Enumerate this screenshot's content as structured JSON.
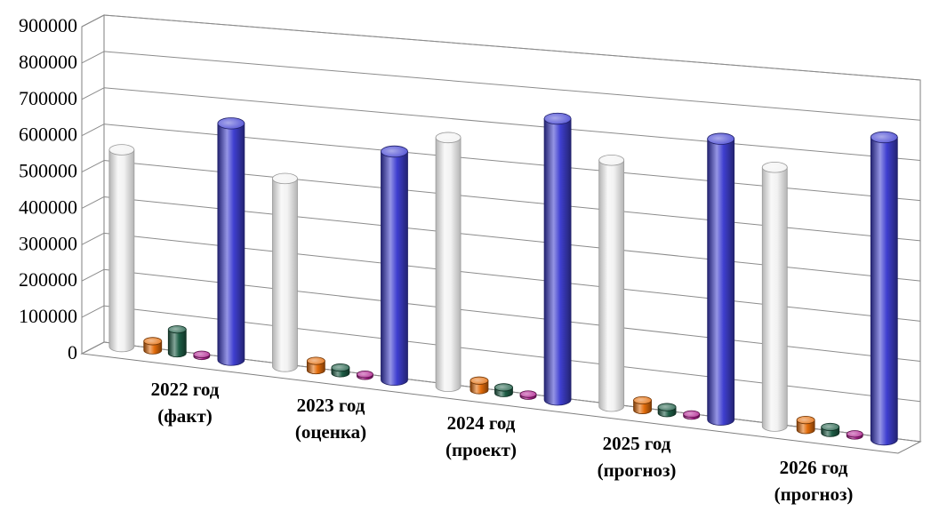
{
  "chart_data": {
    "type": "bar",
    "style": "3d-cylinder",
    "title": "",
    "xlabel": "",
    "ylabel": "",
    "ylim": [
      0,
      900000
    ],
    "yticks": [
      "900000",
      "800000",
      "700000",
      "600000",
      "500000",
      "400000",
      "300000",
      "200000",
      "100000",
      "0"
    ],
    "grid": true,
    "legend": "none",
    "categories": [
      [
        "2022 год",
        "(факт)"
      ],
      [
        "2023 год",
        "(оценка)"
      ],
      [
        "2024 год",
        "(проект)"
      ],
      [
        "2025 год",
        "(прогноз)"
      ],
      [
        "2026 год",
        "(прогноз)"
      ]
    ],
    "series": [
      {
        "color": "#f2f2f2",
        "values": [
          540000,
          505000,
          655000,
          635000,
          655000
        ]
      },
      {
        "color": "#e36c0a",
        "values": [
          25000,
          25000,
          25000,
          25000,
          25000
        ]
      },
      {
        "color": "#1e5e46",
        "values": [
          65000,
          15000,
          15000,
          15000,
          15000
        ]
      },
      {
        "color": "#b0208f",
        "values": [
          5000,
          5000,
          5000,
          5000,
          5000
        ]
      },
      {
        "color": "#3f3fd0",
        "values": [
          640000,
          605000,
          730000,
          715000,
          755000
        ]
      }
    ]
  }
}
